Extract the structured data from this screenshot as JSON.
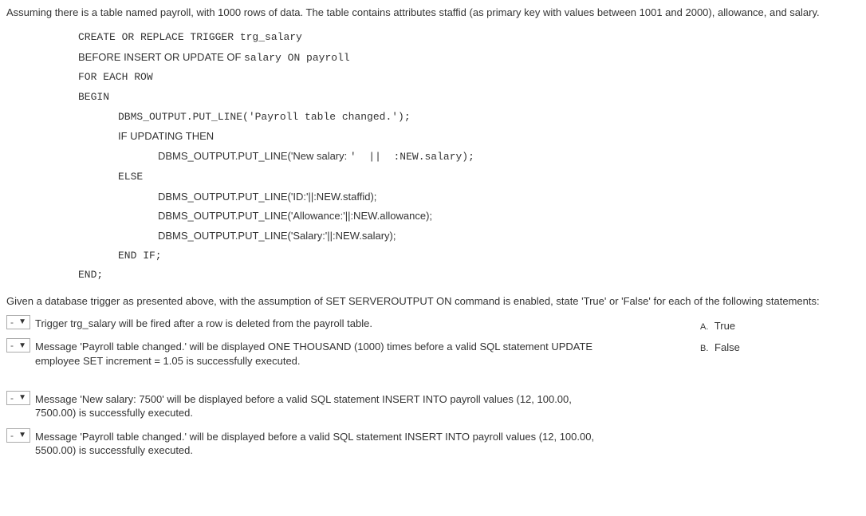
{
  "intro": "Assuming there is a table named payroll, with 1000 rows of data. The table contains attributes staffid (as primary key with values between 1001 and 2000), allowance, and salary.",
  "code": {
    "l1": "CREATE OR REPLACE TRIGGER trg_salary",
    "l2_a": "BEFORE INSERT OR UPDATE OF ",
    "l2_b": "salary ON payroll",
    "l3": "FOR EACH ROW",
    "l4": "BEGIN",
    "l5": "DBMS_OUTPUT.PUT_LINE('Payroll table changed.');",
    "l6": "IF UPDATING THEN",
    "l7_a": "DBMS_OUTPUT.PUT_LINE('New salary: ",
    "l7_b": "'  ||  :NEW.salary);",
    "l8": "ELSE",
    "l9_a": "DBMS_OUTPUT.PUT_LINE('ID:'||:NEW.staffid);",
    "l10_a": "DBMS_OUTPUT.PUT_LINE('Allowance:'||:NEW.allowance);",
    "l11_a": "DBMS_OUTPUT.PUT_LINE('Salary:'||:NEW.salary);",
    "l12": "END IF;",
    "l13": "END;"
  },
  "instruction": "Given a database trigger as presented above, with the assumption of SET SERVEROUTPUT ON command is enabled, state 'True' or 'False' for each of the following statements:",
  "questions": {
    "q1": "Trigger trg_salary will be fired after a row is deleted from the payroll table.",
    "q2": "Message 'Payroll table changed.' will be displayed ONE THOUSAND (1000) times before a valid SQL statement UPDATE employee SET increment = 1.05 is successfully executed.",
    "q3": "Message 'New salary: 7500' will be displayed before a valid SQL statement INSERT INTO payroll values (12, 100.00, 7500.00) is successfully executed.",
    "q4": "Message 'Payroll table changed.' will be displayed before a valid SQL statement INSERT INTO payroll values (12, 100.00, 5500.00) is successfully executed."
  },
  "answers": {
    "a_label": "A.",
    "a_text": "True",
    "b_label": "B.",
    "b_text": "False"
  },
  "select_placeholder": "-"
}
